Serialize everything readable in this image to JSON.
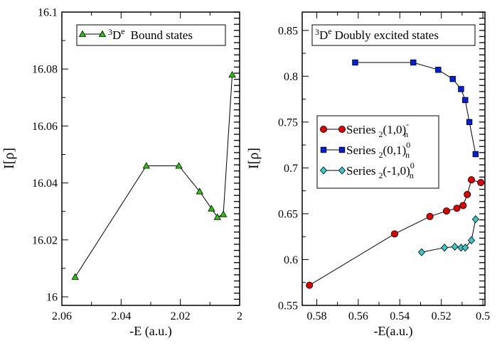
{
  "chart_data": [
    {
      "type": "line",
      "panel": "left",
      "title": "",
      "xlabel": "-E (a.u.)",
      "ylabel": "I[ρ]",
      "xlim": [
        2.06,
        2.0
      ],
      "ylim": [
        15.997,
        16.1
      ],
      "x_ticks": [
        2.06,
        2.04,
        2.02,
        2.0
      ],
      "x_tick_labels": [
        "2.06",
        "2.04",
        "2.02",
        "2"
      ],
      "y_ticks": [
        16.0,
        16.02,
        16.04,
        16.06,
        16.08,
        16.1
      ],
      "y_tick_labels": [
        "16",
        "16.02",
        "16.04",
        "16.06",
        "16.08",
        "16.1"
      ],
      "legend_position": "top-right",
      "series": [
        {
          "name": "3De Bound states",
          "legend_pre": "3",
          "legend_main": "D",
          "legend_sup": "e",
          "legend_tail": "Bound states",
          "marker": "triangle",
          "color": "#22cc00",
          "x": [
            2.0555,
            2.0315,
            2.0205,
            2.0135,
            2.0095,
            2.0075,
            2.0055,
            2.0025
          ],
          "y": [
            16.007,
            16.046,
            16.046,
            16.037,
            16.031,
            16.028,
            16.029,
            16.078
          ]
        }
      ]
    },
    {
      "type": "line",
      "panel": "right",
      "title": "",
      "xlabel": "-E(a.u.)",
      "ylabel": "I[ρ]",
      "xlim": [
        0.587,
        0.499
      ],
      "ylim": [
        0.55,
        0.87
      ],
      "x_ticks": [
        0.58,
        0.56,
        0.54,
        0.52,
        0.5
      ],
      "x_tick_labels": [
        "0.58",
        "0.56",
        "0.54",
        "0.52",
        "0.5"
      ],
      "y_ticks": [
        0.55,
        0.6,
        0.65,
        0.7,
        0.75,
        0.8,
        0.85
      ],
      "y_tick_labels": [
        "0.55",
        "0.6",
        "0.65",
        "0.7",
        "0.75",
        "0.8",
        "0.85"
      ],
      "legend_position": "center-right",
      "annotation": {
        "pre": "3",
        "main": "D",
        "sup": "e",
        "tail": "Doubly excited states"
      },
      "series": [
        {
          "name": "Series 2(1,0)n-",
          "legend_word": "Series",
          "legend_sub": "2",
          "legend_paren": "(1,0)",
          "legend_sup": "-",
          "legend_sub2": "n",
          "marker": "circle",
          "color": "#e00000",
          "x": [
            0.5835,
            0.5425,
            0.5255,
            0.5175,
            0.5125,
            0.5095,
            0.5075,
            0.5055,
            0.501
          ],
          "y": [
            0.572,
            0.628,
            0.647,
            0.653,
            0.656,
            0.659,
            0.671,
            0.687,
            0.684
          ]
        },
        {
          "name": "Series 2(0,1)n0",
          "legend_word": "Series",
          "legend_sub": "2",
          "legend_paren": "(0,1)",
          "legend_sup": "0",
          "legend_sub2": "n",
          "marker": "square",
          "color": "#0020e0",
          "x": [
            0.5615,
            0.5335,
            0.5215,
            0.5145,
            0.5105,
            0.5085,
            0.5065,
            0.5035
          ],
          "y": [
            0.815,
            0.815,
            0.807,
            0.797,
            0.786,
            0.774,
            0.75,
            0.715
          ]
        },
        {
          "name": "Series 2(-1,0)n0",
          "legend_word": "Series",
          "legend_sub": "2",
          "legend_paren": "(-1,0)",
          "legend_sup": "0",
          "legend_sub2": "n",
          "marker": "diamond",
          "color": "#33cccc",
          "x": [
            0.5295,
            0.5185,
            0.5135,
            0.5105,
            0.5085,
            0.5055,
            0.5035
          ],
          "y": [
            0.608,
            0.613,
            0.614,
            0.613,
            0.613,
            0.621,
            0.644
          ]
        }
      ]
    }
  ]
}
